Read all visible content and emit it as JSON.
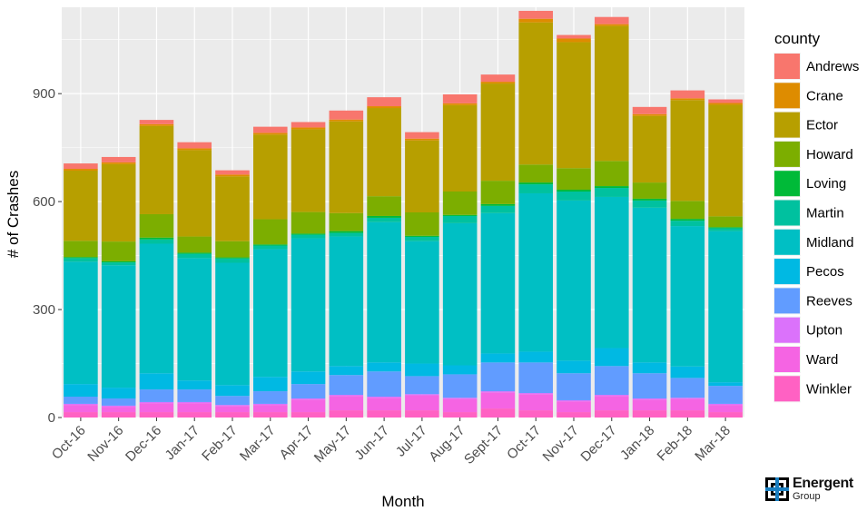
{
  "chart_data": {
    "type": "bar",
    "stacked": true,
    "xlabel": "Month",
    "ylabel": "# of Crashes",
    "ylim": [
      0,
      1140
    ],
    "yticks": [
      0,
      300,
      600,
      900
    ],
    "grid": true,
    "legend": {
      "title": "county",
      "position": "right"
    },
    "categories": [
      "Oct-16",
      "Nov-16",
      "Dec-16",
      "Jan-17",
      "Feb-17",
      "Mar-17",
      "Apr-17",
      "May-17",
      "Jun-17",
      "Jul-17",
      "Aug-17",
      "Sept-17",
      "Oct-17",
      "Nov-17",
      "Dec-17",
      "Jan-18",
      "Feb-18",
      "Mar-18"
    ],
    "series": [
      {
        "name": "Winkler",
        "color": "#FF61C3",
        "values": [
          15,
          15,
          15,
          15,
          15,
          15,
          15,
          20,
          20,
          20,
          15,
          25,
          20,
          15,
          20,
          20,
          20,
          15
        ]
      },
      {
        "name": "Ward",
        "color": "#F564E3",
        "values": [
          20,
          15,
          25,
          25,
          17,
          20,
          35,
          40,
          35,
          42,
          37,
          45,
          45,
          30,
          40,
          30,
          32,
          20
        ]
      },
      {
        "name": "Upton",
        "color": "#DB72FB",
        "values": [
          3,
          3,
          3,
          3,
          3,
          3,
          3,
          3,
          3,
          3,
          3,
          3,
          3,
          3,
          3,
          3,
          3,
          3
        ]
      },
      {
        "name": "Reeves",
        "color": "#619CFF",
        "values": [
          20,
          20,
          35,
          35,
          25,
          35,
          40,
          55,
          70,
          50,
          65,
          80,
          85,
          75,
          80,
          70,
          55,
          50
        ]
      },
      {
        "name": "Pecos",
        "color": "#00B9E3",
        "values": [
          35,
          30,
          45,
          25,
          30,
          40,
          35,
          25,
          25,
          35,
          25,
          25,
          30,
          35,
          50,
          30,
          32,
          10
        ]
      },
      {
        "name": "Midland",
        "color": "#00BFC4",
        "values": [
          340,
          340,
          360,
          340,
          340,
          355,
          370,
          360,
          390,
          340,
          395,
          390,
          440,
          445,
          420,
          430,
          390,
          420
        ]
      },
      {
        "name": "Martin",
        "color": "#00C19F",
        "values": [
          10,
          8,
          12,
          12,
          12,
          10,
          10,
          10,
          12,
          12,
          20,
          20,
          25,
          25,
          25,
          20,
          15,
          8
        ]
      },
      {
        "name": "Loving",
        "color": "#00BA38",
        "values": [
          3,
          3,
          5,
          3,
          3,
          3,
          3,
          5,
          5,
          3,
          3,
          5,
          5,
          5,
          5,
          5,
          5,
          3
        ]
      },
      {
        "name": "Howard",
        "color": "#7CAE00",
        "values": [
          45,
          55,
          65,
          45,
          45,
          70,
          60,
          50,
          55,
          65,
          65,
          65,
          50,
          60,
          70,
          45,
          50,
          30
        ]
      },
      {
        "name": "Ector",
        "color": "#B79F00",
        "values": [
          195,
          215,
          245,
          240,
          180,
          235,
          230,
          255,
          245,
          200,
          240,
          270,
          395,
          350,
          375,
          185,
          280,
          310
        ]
      },
      {
        "name": "Crane",
        "color": "#DE8C00",
        "values": [
          5,
          5,
          5,
          5,
          5,
          5,
          5,
          5,
          5,
          5,
          5,
          5,
          10,
          10,
          5,
          5,
          5,
          5
        ]
      },
      {
        "name": "Andrews",
        "color": "#F8766D",
        "values": [
          15,
          15,
          12,
          17,
          12,
          17,
          15,
          25,
          25,
          18,
          25,
          20,
          22,
          10,
          20,
          20,
          22,
          10
        ]
      }
    ]
  },
  "logo": {
    "name": "Energent",
    "sub": "Group"
  }
}
